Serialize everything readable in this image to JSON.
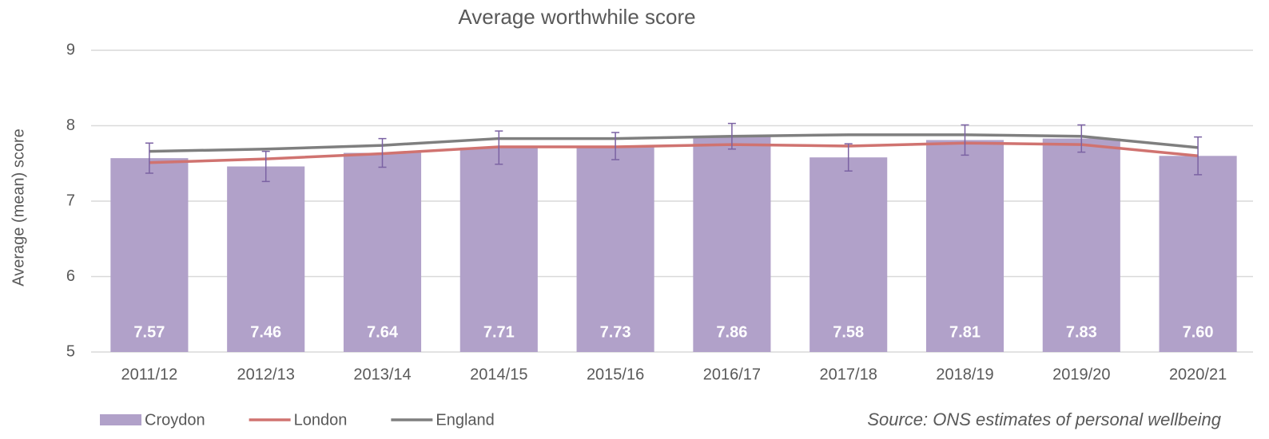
{
  "chart_data": {
    "type": "bar",
    "title": "Average worthwhile score",
    "y_label": "Average (mean) score",
    "source": "Source: ONS estimates of personal wellbeing",
    "categories": [
      "2011/12",
      "2012/13",
      "2013/14",
      "2014/15",
      "2015/16",
      "2016/17",
      "2017/18",
      "2018/19",
      "2019/20",
      "2020/21"
    ],
    "series": [
      {
        "name": "Croydon",
        "type": "bar",
        "color": "#b1a1c9",
        "error_color": "#7b62a3",
        "values": [
          7.57,
          7.46,
          7.64,
          7.71,
          7.73,
          7.86,
          7.58,
          7.81,
          7.83,
          7.6
        ],
        "value_labels": [
          "7.57",
          "7.46",
          "7.64",
          "7.71",
          "7.73",
          "7.86",
          "7.58",
          "7.81",
          "7.83",
          "7.60"
        ],
        "errors": [
          0.2,
          0.2,
          0.19,
          0.22,
          0.18,
          0.17,
          0.18,
          0.2,
          0.18,
          0.25
        ]
      },
      {
        "name": "London",
        "type": "line",
        "color": "#d07370",
        "values": [
          7.51,
          7.56,
          7.63,
          7.72,
          7.72,
          7.75,
          7.73,
          7.77,
          7.75,
          7.6
        ]
      },
      {
        "name": "England",
        "type": "line",
        "color": "#7f7f7f",
        "values": [
          7.66,
          7.69,
          7.74,
          7.83,
          7.83,
          7.86,
          7.88,
          7.88,
          7.86,
          7.71
        ]
      }
    ],
    "ylim": [
      5,
      9
    ],
    "yticks": [
      5,
      6,
      7,
      8,
      9
    ],
    "grid": true,
    "legend": "bottom-left"
  }
}
